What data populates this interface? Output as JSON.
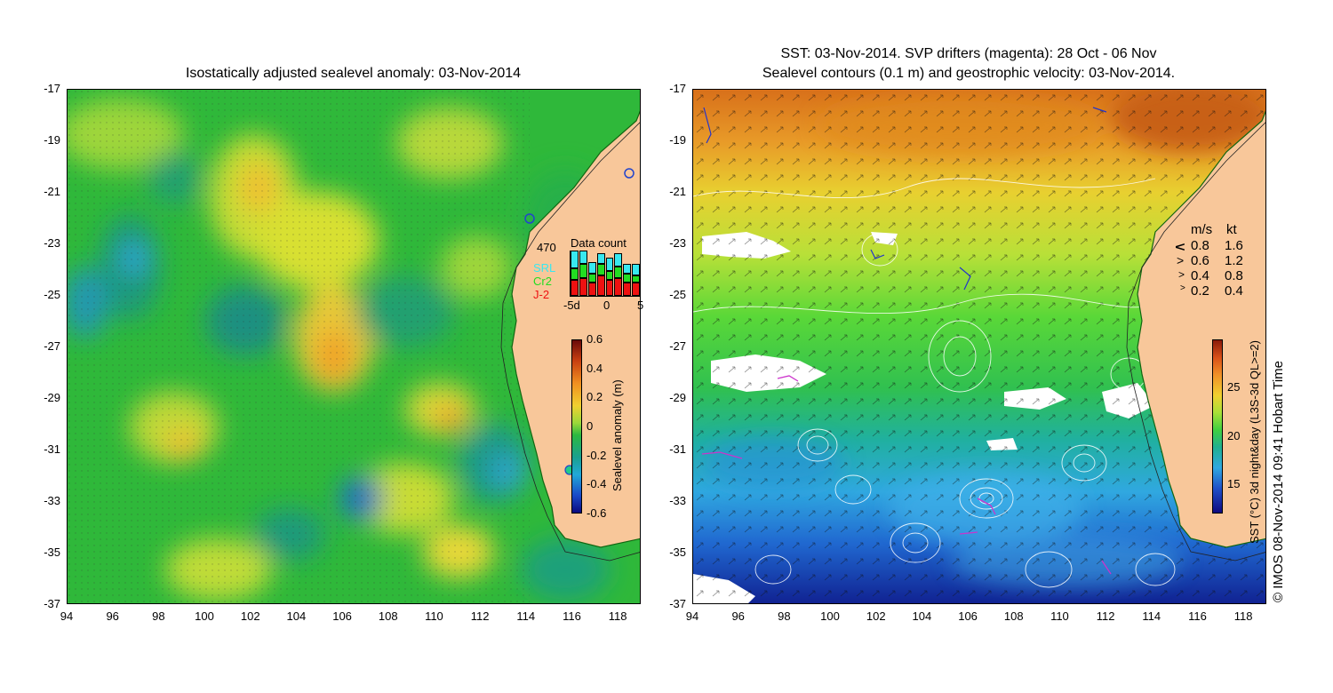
{
  "left_panel": {
    "title": "Isostatically adjusted sealevel anomaly: 03-Nov-2014",
    "y_ticks": [
      "-17",
      "-19",
      "-21",
      "-23",
      "-25",
      "-27",
      "-29",
      "-31",
      "-33",
      "-35",
      "-37"
    ],
    "x_ticks": [
      "94",
      "96",
      "98",
      "100",
      "102",
      "104",
      "106",
      "108",
      "110",
      "112",
      "114",
      "116",
      "118"
    ],
    "colorbar": {
      "label": "Sealevel anomaly (m)",
      "ticks": [
        "0.6",
        "0.4",
        "0.2",
        "0",
        "-0.2",
        "-0.4",
        "-0.6"
      ],
      "range": [
        -0.6,
        0.6
      ]
    },
    "data_count": {
      "title": "Data count",
      "max": "470",
      "legend": [
        {
          "name": "SRL",
          "color": "#38e8f0"
        },
        {
          "name": "Cr2",
          "color": "#22dd22"
        },
        {
          "name": "J-2",
          "color": "#ee1111"
        }
      ],
      "x_ticks": [
        "-5d",
        "0",
        "5"
      ],
      "bars": [
        {
          "j2": 0.35,
          "cr2": 0.25,
          "srl": 0.4
        },
        {
          "j2": 0.4,
          "cr2": 0.3,
          "srl": 0.3
        },
        {
          "j2": 0.3,
          "cr2": 0.2,
          "srl": 0.25
        },
        {
          "j2": 0.45,
          "cr2": 0.25,
          "srl": 0.25
        },
        {
          "j2": 0.35,
          "cr2": 0.2,
          "srl": 0.3
        },
        {
          "j2": 0.4,
          "cr2": 0.25,
          "srl": 0.3
        },
        {
          "j2": 0.3,
          "cr2": 0.2,
          "srl": 0.2
        },
        {
          "j2": 0.3,
          "cr2": 0.15,
          "srl": 0.25
        }
      ]
    }
  },
  "right_panel": {
    "title_line1": "SST: 03-Nov-2014. SVP drifters (magenta): 28 Oct - 06 Nov",
    "title_line2": "Sealevel contours (0.1 m) and geostrophic velocity: 03-Nov-2014.",
    "y_ticks": [
      "-17",
      "-19",
      "-21",
      "-23",
      "-25",
      "-27",
      "-29",
      "-31",
      "-33",
      "-35",
      "-37"
    ],
    "x_ticks": [
      "94",
      "96",
      "98",
      "100",
      "102",
      "104",
      "106",
      "108",
      "110",
      "112",
      "114",
      "116",
      "118"
    ],
    "velocity_legend": {
      "header_ms": "m/s",
      "header_kt": "kt",
      "rows": [
        {
          "ms": "0.8",
          "kt": "1.6"
        },
        {
          "ms": "0.6",
          "kt": "1.2"
        },
        {
          "ms": "0.4",
          "kt": "0.8"
        },
        {
          "ms": "0.2",
          "kt": "0.4"
        }
      ]
    },
    "colorbar": {
      "label": "SST (°C) 3d night&day (L3S-3d QL>=2)",
      "ticks": [
        "25",
        "20",
        "15"
      ],
      "range": [
        12,
        30
      ]
    }
  },
  "credit": "© IMOS 08-Nov-2014 09:41 Hobart Time",
  "colors": {
    "land": "#f8c79a",
    "ssa_background": "#22bb33",
    "sst_north": "#e08a20",
    "sst_south": "#1a55cc"
  }
}
